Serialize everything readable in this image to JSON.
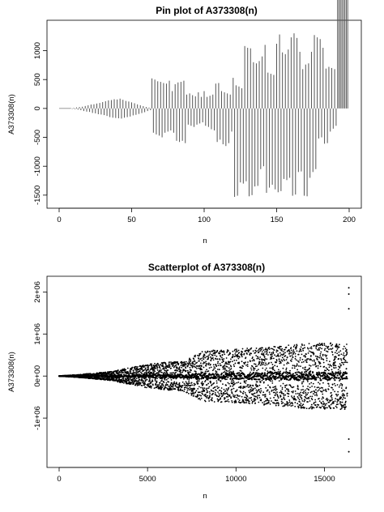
{
  "chart_data": [
    {
      "type": "bar",
      "subtype": "pin",
      "title": "Pin plot of A373308(n)",
      "xlabel": "n",
      "ylabel": "A373308(n)",
      "xlim": [
        0,
        200
      ],
      "ylim": [
        -1600,
        1400
      ],
      "xticks": [
        0,
        50,
        100,
        150,
        200
      ],
      "yticks": [
        -1500,
        -1000,
        -500,
        0,
        500,
        1000
      ],
      "color": "#555555",
      "series": [
        {
          "x": [
            8,
            10,
            12,
            14,
            16,
            18,
            20,
            22,
            24,
            26,
            28,
            30,
            32,
            34,
            36,
            38,
            40,
            42,
            44,
            46,
            48,
            50,
            52,
            54,
            56,
            58,
            60,
            62,
            64,
            66,
            68,
            70,
            72,
            74,
            76,
            78,
            80,
            82,
            84,
            86,
            88,
            90,
            92,
            94,
            96,
            98,
            100,
            102,
            104,
            106,
            108,
            110,
            112,
            114,
            116,
            118,
            120,
            122,
            124,
            126,
            128,
            130,
            132,
            134,
            136,
            138,
            140,
            142,
            144,
            146,
            148,
            150,
            152,
            154,
            156,
            158,
            160,
            162,
            164,
            166,
            168,
            170,
            172,
            174,
            176,
            178,
            180,
            182,
            184,
            186,
            188,
            190,
            192,
            194,
            196,
            198
          ],
          "top": [
            5,
            10,
            18,
            24,
            30,
            42,
            55,
            68,
            72,
            85,
            95,
            110,
            125,
            140,
            145,
            160,
            155,
            170,
            150,
            130,
            120,
            105,
            90,
            70,
            55,
            40,
            25,
            15,
            520,
            500,
            470,
            460,
            440,
            430,
            480,
            300,
            420,
            450,
            460,
            480,
            240,
            260,
            230,
            210,
            280,
            200,
            300,
            200,
            220,
            240,
            430,
            440,
            300,
            280,
            260,
            240,
            530,
            400,
            380,
            350,
            1080,
            1050,
            1040,
            800,
            780,
            820,
            900,
            1100,
            620,
            600,
            580,
            1120,
            1280,
            970,
            940,
            1020,
            1230,
            1300,
            1220,
            980,
            680,
            760,
            780,
            980,
            1270,
            1230,
            1200,
            1050,
            690,
            720,
            700,
            680
          ],
          "bottom": [
            -8,
            -12,
            -20,
            -30,
            -45,
            -55,
            -60,
            -78,
            -85,
            -100,
            -105,
            -115,
            -130,
            -150,
            -160,
            -165,
            -170,
            -175,
            -160,
            -150,
            -140,
            -120,
            -110,
            -95,
            -80,
            -65,
            -45,
            -30,
            -420,
            -450,
            -470,
            -500,
            -420,
            -400,
            -380,
            -420,
            -560,
            -580,
            -560,
            -600,
            -280,
            -300,
            -320,
            -280,
            -260,
            -240,
            -300,
            -320,
            -360,
            -380,
            -580,
            -540,
            -620,
            -650,
            -600,
            -400,
            -1530,
            -1510,
            -1280,
            -1300,
            -1260,
            -1520,
            -1500,
            -1350,
            -1340,
            -1050,
            -1000,
            -1460,
            -1370,
            -1320,
            -1400,
            -1450,
            -1430,
            -1220,
            -1240,
            -1200,
            -1510,
            -1490,
            -1100,
            -1090,
            -1510,
            -1520,
            -1200,
            -1100,
            -1050,
            -520,
            -500,
            -610,
            -600,
            -400,
            -350,
            -300
          ]
        }
      ]
    },
    {
      "type": "scatter",
      "title": "Scatterplot of A373308(n)",
      "xlabel": "n",
      "ylabel": "A373308(n)",
      "xlim": [
        0,
        16400
      ],
      "ylim": [
        -2000000,
        2200000
      ],
      "xticks": [
        0,
        5000,
        10000,
        15000
      ],
      "ytick_labels": [
        "-1e+06",
        "0e+00",
        "1e+06",
        "2e+06"
      ],
      "yticks": [
        -1000000,
        0,
        1000000,
        2000000
      ],
      "color": "#000000",
      "envelope": [
        {
          "x": 0,
          "amp": 5000
        },
        {
          "x": 1000,
          "amp": 30000
        },
        {
          "x": 2000,
          "amp": 70000
        },
        {
          "x": 3000,
          "amp": 110000
        },
        {
          "x": 4000,
          "amp": 200000
        },
        {
          "x": 5000,
          "amp": 280000
        },
        {
          "x": 6000,
          "amp": 330000
        },
        {
          "x": 7000,
          "amp": 350000
        },
        {
          "x": 8100,
          "amp": 600000
        },
        {
          "x": 10000,
          "amp": 640000
        },
        {
          "x": 12000,
          "amp": 700000
        },
        {
          "x": 14000,
          "amp": 780000
        },
        {
          "x": 16300,
          "amp": 800000
        }
      ],
      "outliers": [
        {
          "x": 16380,
          "y": 2100000
        },
        {
          "x": 16380,
          "y": 1950000
        },
        {
          "x": 16380,
          "y": 1600000
        },
        {
          "x": 16380,
          "y": -1500000
        },
        {
          "x": 16380,
          "y": -1800000
        }
      ]
    }
  ]
}
